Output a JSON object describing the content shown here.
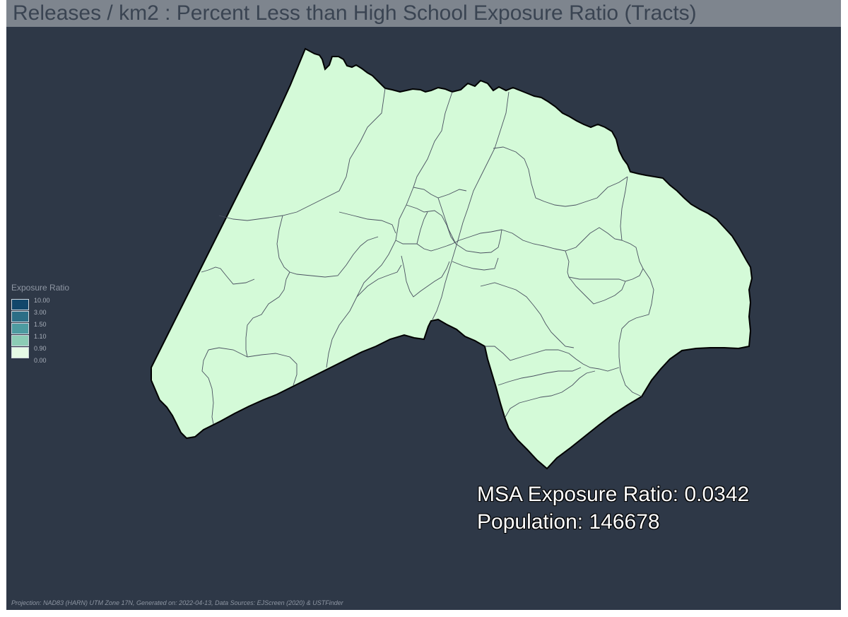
{
  "title": "Releases / km2 : Percent Less than High School Exposure Ratio (Tracts)",
  "colors": {
    "background": "#2e3847",
    "title_bar": "#7e858e",
    "tract_fill": "#d4fad8",
    "tract_border": "#4a5160",
    "county_border": "#000000"
  },
  "legend": {
    "title": "Exposure Ratio",
    "classes": [
      {
        "label": "10.00",
        "color": "#12476b"
      },
      {
        "label": "3.00",
        "color": "#2c6e86"
      },
      {
        "label": "1.50",
        "color": "#4d9ba0"
      },
      {
        "label": "1.10",
        "color": "#8ccdb5"
      },
      {
        "label": "0.90",
        "color": "#e6fbe6"
      },
      {
        "label": "0.00",
        "color": ""
      }
    ]
  },
  "stats": {
    "msa_ratio": "MSA Exposure Ratio: 0.0342",
    "population": "Population: 146678"
  },
  "footer": "Projection: NAD83 (HARN) UTM Zone 17N, Generated on: 2022-04-13, Data Sources: EJScreen (2020) & USTFinder"
}
